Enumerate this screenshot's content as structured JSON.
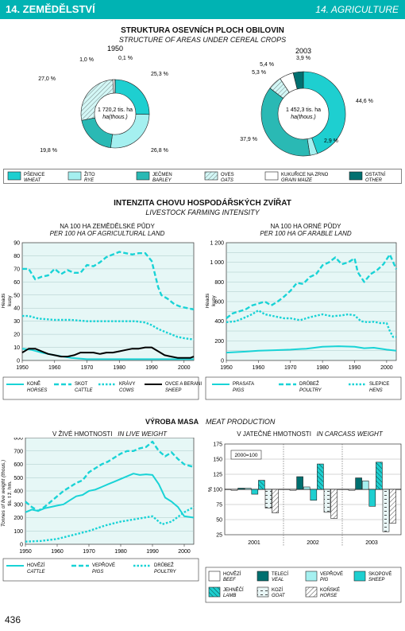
{
  "header": {
    "left": "14. ZEMĚDĚLSTVÍ",
    "right": "14. AGRICULTURE"
  },
  "page_number": "436",
  "colors": {
    "teal": "#00b3b3",
    "wheat": "#1ecfd0",
    "rye": "#a5f0f0",
    "barley": "#2ab9b4",
    "oats": "#d3f7f6",
    "maize": "#ffffff",
    "other": "#007070",
    "chart_bg": "#e6f7f6",
    "line": "#19d3d6"
  },
  "sowing": {
    "title": "STRUKTURA OSEVNÍCH PLOCH OBILOVIN",
    "subtitle": "STRUCTURE OF AREAS UNDER CEREAL CROPS",
    "pies": [
      {
        "year": "1950",
        "center1": "1 720,2 tis. ha",
        "center2": "ha(thous.)"
      },
      {
        "year": "2003",
        "center1": "1 452,3 tis. ha",
        "center2": "ha(thous.)"
      }
    ],
    "legend": [
      {
        "cz": "PŠENICE",
        "en": "WHEAT"
      },
      {
        "cz": "ŽITO",
        "en": "RYE"
      },
      {
        "cz": "JEČMEN",
        "en": "BARLEY"
      },
      {
        "cz": "OVES",
        "en": "OATS"
      },
      {
        "cz": "KUKUŘICE NA ZRNO",
        "en": "GRAIN MAIZE"
      },
      {
        "cz": "OSTATNÍ",
        "en": "OTHER"
      }
    ]
  },
  "livestock": {
    "title": "INTENZITA CHOVU HOSPODÁŘSKÝCH ZVÍŘAT",
    "subtitle": "LIVESTOCK FARMING INTENSITY",
    "left_title": "NA 100 HA ZEMĚDĚLSKÉ PŮDY",
    "left_title_en": "PER 100 HA OF AGRICULTURAL LAND",
    "right_title": "NA 100 HA ORNÉ PŮDY",
    "right_title_en": "PER 100 HA OF ARABLE LAND",
    "ylabel1": "Heads",
    "ylabel2": "kusy",
    "legend_left": [
      {
        "cz": "KONĚ",
        "en": "HORSES",
        "style": "solid"
      },
      {
        "cz": "SKOT",
        "en": "CATTLE",
        "style": "dash"
      },
      {
        "cz": "KRÁVY",
        "en": "COWS",
        "style": "dot"
      },
      {
        "cz": "OVCE A BERANI",
        "en": "SHEEP",
        "style": "black"
      }
    ],
    "legend_right": [
      {
        "cz": "PRASATA",
        "en": "PIGS",
        "style": "solid"
      },
      {
        "cz": "DRŮBEŽ",
        "en": "POULTRY",
        "style": "dash"
      },
      {
        "cz": "SLEPICE",
        "en": "HENS",
        "style": "dot"
      }
    ]
  },
  "meat": {
    "title": "VÝROBA MASA",
    "title_en": "MEAT PRODUCTION",
    "left_title": "V ŽIVÉ HMOTNOSTI",
    "left_title_en": "IN LIVE WEIGHT",
    "right_title": "V JATEČNÉ HMOTNOSTI",
    "right_title_en": "IN CARCASS WEIGHT",
    "ylabel1": "Tonnes of live weight (thous.)",
    "ylabel2": "tis. t ž. hm.",
    "index_label": "2000=100",
    "pct": "%",
    "legend_left": [
      {
        "cz": "HOVĚZÍ",
        "en": "CATTLE",
        "style": "solid"
      },
      {
        "cz": "VEPŘOVÉ",
        "en": "PIGS",
        "style": "dash"
      },
      {
        "cz": "DRŮBEŽ",
        "en": "POULTRY",
        "style": "dot"
      }
    ],
    "legend_right": [
      {
        "cz": "HOVĚZÍ",
        "en": "BEEF"
      },
      {
        "cz": "TELECÍ",
        "en": "VEAL"
      },
      {
        "cz": "VEPŘOVÉ",
        "en": "PIG"
      },
      {
        "cz": "SKOPOVÉ",
        "en": "SHEEP"
      },
      {
        "cz": "JEHNĚČÍ",
        "en": "LAMB"
      },
      {
        "cz": "KOZÍ",
        "en": "GOAT"
      },
      {
        "cz": "KOŇSKÉ",
        "en": "HORSE"
      }
    ]
  },
  "chart_data": [
    {
      "type": "pie",
      "title": "1950",
      "categories": [
        "WHEAT",
        "RYE",
        "BARLEY",
        "OATS",
        "GRAIN MAIZE",
        "OTHER"
      ],
      "values": [
        25.3,
        26.8,
        19.8,
        27.0,
        1.0,
        0.1
      ],
      "labels": [
        "25,3 %",
        "26,8 %",
        "19,8 %",
        "27,0 %",
        "1,0 %",
        "0,1 %"
      ]
    },
    {
      "type": "pie",
      "title": "2003",
      "categories": [
        "WHEAT",
        "RYE",
        "BARLEY",
        "OATS",
        "GRAIN MAIZE",
        "OTHER"
      ],
      "values": [
        44.6,
        2.9,
        37.9,
        5.3,
        5.4,
        3.9
      ],
      "labels": [
        "44,6 %",
        "2,9 %",
        "37,9 %",
        "5,3 %",
        "5,4 %",
        "3,9 %"
      ]
    },
    {
      "type": "line",
      "ylim": [
        0,
        90
      ],
      "xlim": [
        1950,
        2003
      ],
      "yticks": [
        0,
        10,
        20,
        30,
        40,
        50,
        60,
        70,
        80,
        90
      ],
      "xticks": [
        1950,
        1960,
        1970,
        1980,
        1990,
        2000
      ],
      "series": [
        {
          "name": "HORSES",
          "x": [
            1950,
            1953,
            1956,
            1960,
            1965,
            1970,
            1975,
            1980,
            1985,
            1990,
            1995,
            2000,
            2003
          ],
          "y": [
            9,
            8,
            6,
            4,
            2,
            1,
            1,
            1,
            1,
            1,
            1,
            1,
            1
          ]
        },
        {
          "name": "CATTLE",
          "x": [
            1950,
            1952,
            1954,
            1956,
            1958,
            1960,
            1962,
            1964,
            1966,
            1968,
            1970,
            1972,
            1974,
            1976,
            1978,
            1980,
            1982,
            1984,
            1986,
            1988,
            1990,
            1991,
            1992,
            1993,
            1995,
            1997,
            1999,
            2001,
            2003
          ],
          "y": [
            70,
            70,
            62,
            64,
            65,
            70,
            66,
            69,
            67,
            67,
            73,
            72,
            75,
            79,
            81,
            83,
            82,
            81,
            82,
            82,
            76,
            66,
            56,
            50,
            47,
            43,
            41,
            40,
            39
          ]
        },
        {
          "name": "COWS",
          "x": [
            1950,
            1952,
            1955,
            1960,
            1965,
            1970,
            1975,
            1980,
            1985,
            1988,
            1990,
            1992,
            1994,
            1996,
            1998,
            2000,
            2003
          ],
          "y": [
            34,
            34,
            32,
            31,
            31,
            30,
            30,
            30,
            30,
            29,
            27,
            24,
            22,
            20,
            18,
            17,
            16
          ]
        },
        {
          "name": "SHEEP",
          "x": [
            1950,
            1952,
            1954,
            1956,
            1958,
            1960,
            1962,
            1964,
            1966,
            1968,
            1970,
            1972,
            1974,
            1976,
            1978,
            1980,
            1982,
            1984,
            1986,
            1988,
            1990,
            1992,
            1994,
            1996,
            1998,
            2000,
            2002,
            2003
          ],
          "y": [
            6,
            9,
            9,
            7,
            5,
            4,
            3,
            3,
            4,
            6,
            6,
            6,
            5,
            6,
            6,
            7,
            8,
            9,
            9,
            10,
            10,
            7,
            4,
            3,
            2,
            2,
            2,
            3
          ]
        }
      ]
    },
    {
      "type": "line",
      "ylim": [
        0,
        1200
      ],
      "xlim": [
        1950,
        2003
      ],
      "yticks": [
        0,
        100,
        200,
        300,
        400,
        500,
        600,
        700,
        800,
        900,
        1000,
        1100,
        1200
      ],
      "yticklabels": [
        "0",
        "",
        "200",
        "",
        "400",
        "",
        "600",
        "",
        "800",
        "",
        "1 000",
        "",
        "1 200"
      ],
      "xticks": [
        1950,
        1960,
        1970,
        1980,
        1990,
        2000
      ],
      "series": [
        {
          "name": "PIGS",
          "x": [
            1950,
            1953,
            1956,
            1960,
            1965,
            1970,
            1975,
            1980,
            1985,
            1990,
            1993,
            1996,
            2000,
            2003
          ],
          "y": [
            80,
            85,
            90,
            100,
            105,
            110,
            120,
            140,
            145,
            140,
            125,
            130,
            110,
            100
          ]
        },
        {
          "name": "POULTRY",
          "x": [
            1950,
            1952,
            1954,
            1956,
            1958,
            1960,
            1962,
            1964,
            1966,
            1968,
            1970,
            1972,
            1974,
            1976,
            1978,
            1980,
            1982,
            1984,
            1986,
            1988,
            1990,
            1991,
            1993,
            1995,
            1997,
            1999,
            2001,
            2003
          ],
          "y": [
            430,
            480,
            500,
            520,
            560,
            580,
            600,
            560,
            600,
            650,
            710,
            790,
            780,
            850,
            880,
            970,
            1000,
            1050,
            980,
            1000,
            1040,
            900,
            800,
            880,
            920,
            980,
            1080,
            930
          ]
        },
        {
          "name": "HENS",
          "x": [
            1950,
            1953,
            1956,
            1958,
            1960,
            1962,
            1965,
            1968,
            1970,
            1973,
            1976,
            1980,
            1983,
            1986,
            1988,
            1990,
            1992,
            1994,
            1996,
            1998,
            2000,
            2001,
            2002,
            2003
          ],
          "y": [
            390,
            400,
            440,
            470,
            510,
            470,
            450,
            430,
            430,
            410,
            440,
            470,
            450,
            460,
            470,
            460,
            400,
            390,
            395,
            380,
            380,
            300,
            240,
            240
          ]
        }
      ]
    },
    {
      "type": "line",
      "ylim": [
        0,
        800
      ],
      "xlim": [
        1950,
        2003
      ],
      "yticks": [
        0,
        100,
        200,
        300,
        400,
        500,
        600,
        700,
        800
      ],
      "xticks": [
        1950,
        1960,
        1970,
        1980,
        1990,
        2000
      ],
      "series": [
        {
          "name": "CATTLE",
          "x": [
            1950,
            1952,
            1954,
            1956,
            1958,
            1960,
            1962,
            1964,
            1966,
            1968,
            1970,
            1972,
            1974,
            1976,
            1978,
            1980,
            1982,
            1984,
            1986,
            1988,
            1990,
            1992,
            1994,
            1996,
            1998,
            2000,
            2003
          ],
          "y": [
            240,
            260,
            250,
            270,
            280,
            290,
            300,
            330,
            360,
            370,
            400,
            410,
            430,
            450,
            470,
            490,
            510,
            530,
            520,
            525,
            520,
            450,
            350,
            320,
            280,
            210,
            200
          ]
        },
        {
          "name": "PIGS",
          "x": [
            1950,
            1952,
            1954,
            1956,
            1958,
            1960,
            1962,
            1964,
            1966,
            1968,
            1970,
            1972,
            1974,
            1976,
            1978,
            1980,
            1982,
            1984,
            1986,
            1988,
            1990,
            1992,
            1994,
            1996,
            1998,
            2000,
            2003
          ],
          "y": [
            320,
            280,
            250,
            280,
            320,
            360,
            400,
            430,
            460,
            480,
            540,
            570,
            600,
            620,
            650,
            680,
            700,
            700,
            720,
            730,
            770,
            700,
            660,
            690,
            640,
            600,
            580
          ]
        },
        {
          "name": "POULTRY",
          "x": [
            1950,
            1955,
            1960,
            1965,
            1970,
            1975,
            1980,
            1985,
            1990,
            1993,
            1996,
            2000,
            2003
          ],
          "y": [
            20,
            25,
            40,
            70,
            100,
            140,
            170,
            190,
            210,
            150,
            170,
            240,
            280
          ]
        }
      ]
    },
    {
      "type": "bar",
      "categories": [
        "2001",
        "2002",
        "2003"
      ],
      "ylim": [
        25,
        175
      ],
      "baseline": 100,
      "yticks": [
        25,
        50,
        75,
        100,
        125,
        150,
        175
      ],
      "series": [
        {
          "name": "BEEF",
          "values": [
            100,
            100,
            100
          ]
        },
        {
          "name": "VEAL",
          "values": [
            102,
            121,
            119
          ]
        },
        {
          "name": "PIG",
          "values": [
            102,
            104,
            114
          ]
        },
        {
          "name": "SHEEP",
          "values": [
            92,
            82,
            72
          ]
        },
        {
          "name": "LAMB",
          "values": [
            115,
            142,
            145
          ]
        },
        {
          "name": "GOAT",
          "values": [
            69,
            62,
            30
          ]
        },
        {
          "name": "HORSE",
          "values": [
            61,
            52,
            44
          ]
        }
      ]
    }
  ]
}
